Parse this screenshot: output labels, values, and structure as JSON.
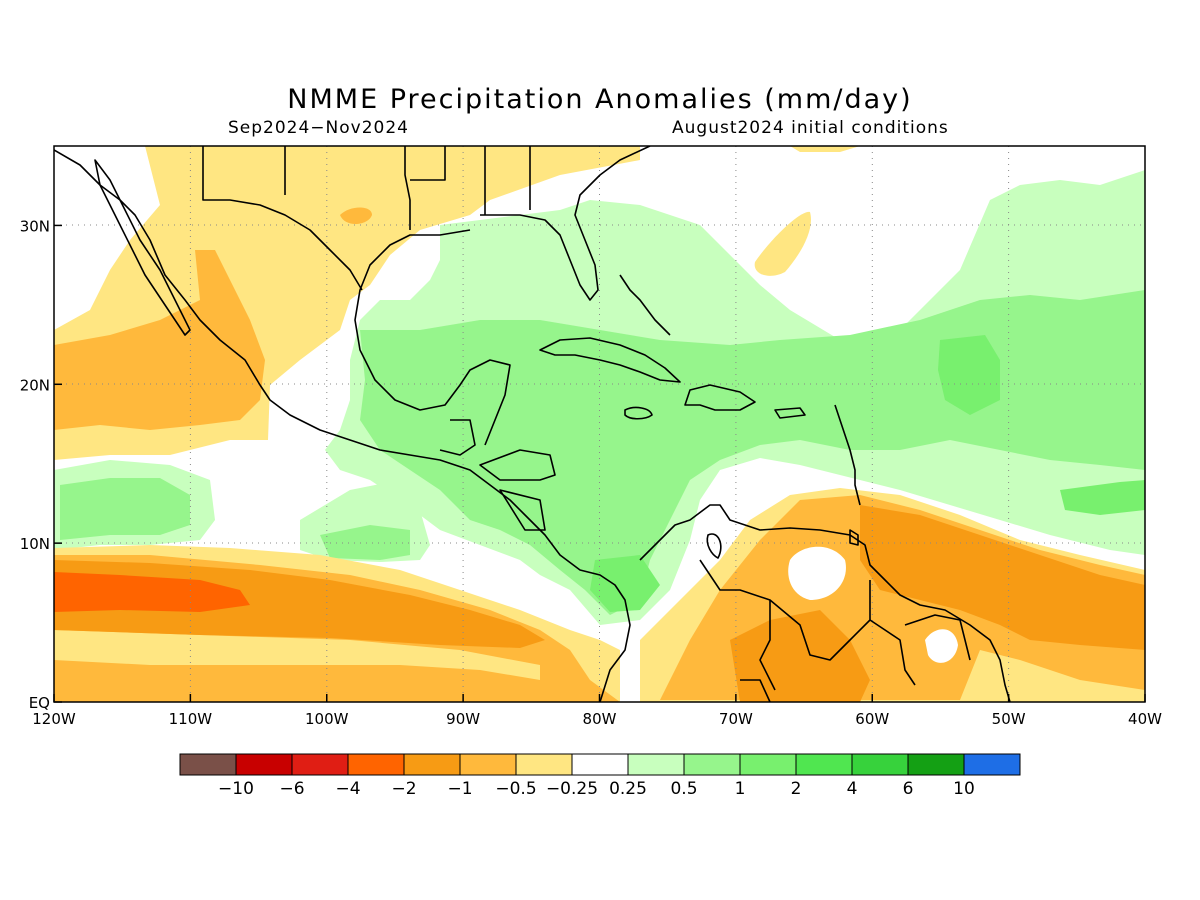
{
  "title": "NMME Precipitation Anomalies (mm/day)",
  "period": "Sep2024−Nov2024",
  "init_conditions": "August2024 initial conditions",
  "map": {
    "lon_range": [
      -120,
      -40
    ],
    "lat_range": [
      0,
      35
    ],
    "lon_ticks": [
      {
        "value": -120,
        "label": "120W"
      },
      {
        "value": -110,
        "label": "110W"
      },
      {
        "value": -100,
        "label": "100W"
      },
      {
        "value": -90,
        "label": "90W"
      },
      {
        "value": -80,
        "label": "80W"
      },
      {
        "value": -70,
        "label": "70W"
      },
      {
        "value": -60,
        "label": "60W"
      },
      {
        "value": -50,
        "label": "50W"
      },
      {
        "value": -40,
        "label": "40W"
      }
    ],
    "lat_ticks": [
      {
        "value": 0,
        "label": "EQ"
      },
      {
        "value": 10,
        "label": "10N"
      },
      {
        "value": 20,
        "label": "20N"
      },
      {
        "value": 30,
        "label": "30N"
      }
    ],
    "grid": "dotted"
  },
  "colorbar": {
    "colors": [
      "#7a5048",
      "#c80000",
      "#e01e14",
      "#ff6400",
      "#f79b14",
      "#ffb93c",
      "#ffe682",
      "#ffffff",
      "#c8ffbe",
      "#96f58c",
      "#78f06e",
      "#50e650",
      "#37d23c",
      "#14a014",
      "#1e6ee6"
    ],
    "labels": [
      "−10",
      "−6",
      "−4",
      "−2",
      "−1",
      "−0.5",
      "−0.25",
      "0.25",
      "0.5",
      "1",
      "2",
      "4",
      "6",
      "10"
    ]
  },
  "palette": {
    "light_yellow": "#ffe682",
    "light_orange": "#ffb93c",
    "orange": "#f79b14",
    "dark_orange": "#ff6400",
    "pale_green": "#c8ffbe",
    "light_green": "#96f58c",
    "green": "#78f06e",
    "coast": "#000000"
  }
}
